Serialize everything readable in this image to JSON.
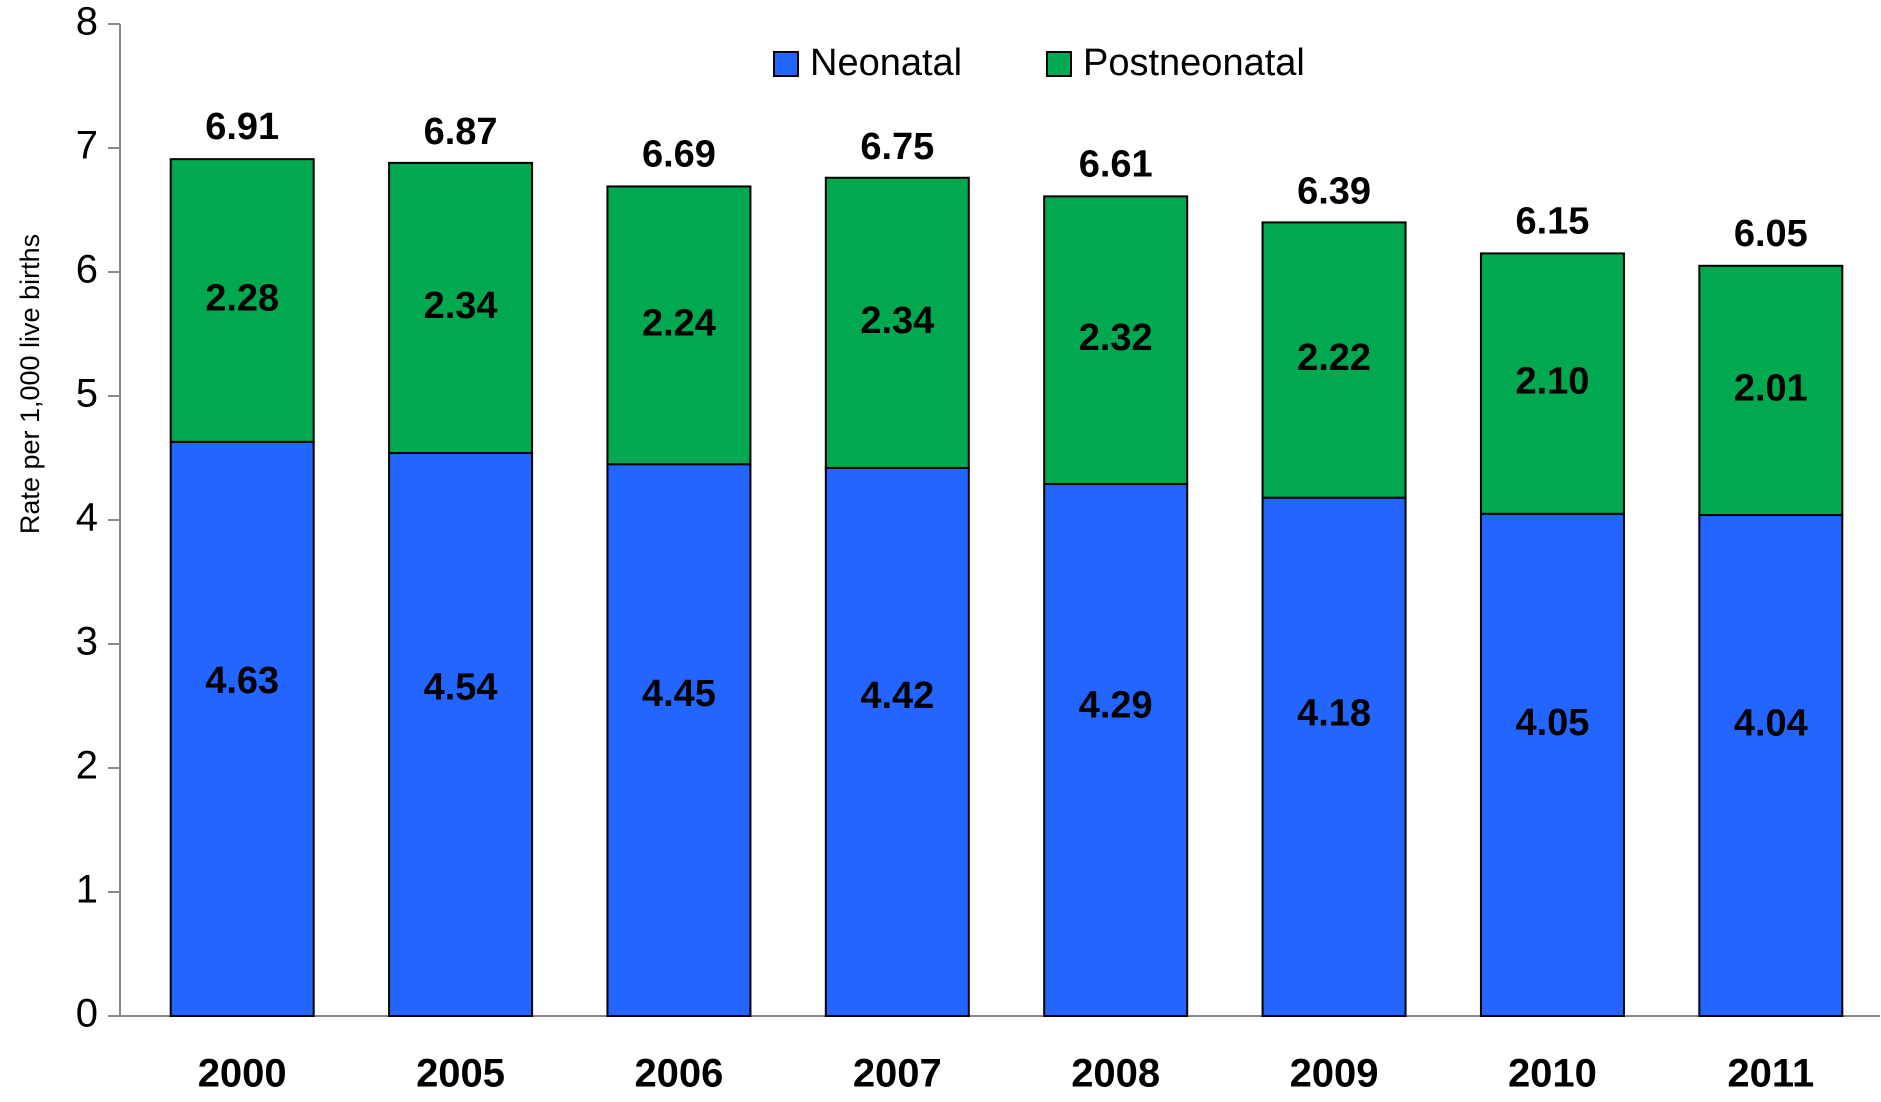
{
  "chart_data": {
    "type": "stacked-bar",
    "y_label": "Rate per 1,000 live births",
    "categories": [
      "2000",
      "2005",
      "2006",
      "2007",
      "2008",
      "2009",
      "2010",
      "2011"
    ],
    "series": [
      {
        "name": "Neonatal",
        "color": "#2266ff",
        "values": [
          4.63,
          4.54,
          4.45,
          4.42,
          4.29,
          4.18,
          4.05,
          4.04
        ]
      },
      {
        "name": "Postneonatal",
        "color": "#00a84f",
        "values": [
          2.28,
          2.34,
          2.24,
          2.34,
          2.32,
          2.22,
          2.1,
          2.01
        ],
        "value_labels": [
          "2.28",
          "2.34",
          "2.24",
          "2.34",
          "2.32",
          "2.22",
          "2.10",
          "2.01"
        ]
      }
    ],
    "totals": [
      6.91,
      6.87,
      6.69,
      6.75,
      6.61,
      6.39,
      6.15,
      6.05
    ],
    "ylim": [
      0,
      8
    ],
    "yticks": [
      0,
      1,
      2,
      3,
      4,
      5,
      6,
      7,
      8
    ],
    "legend": "top"
  }
}
